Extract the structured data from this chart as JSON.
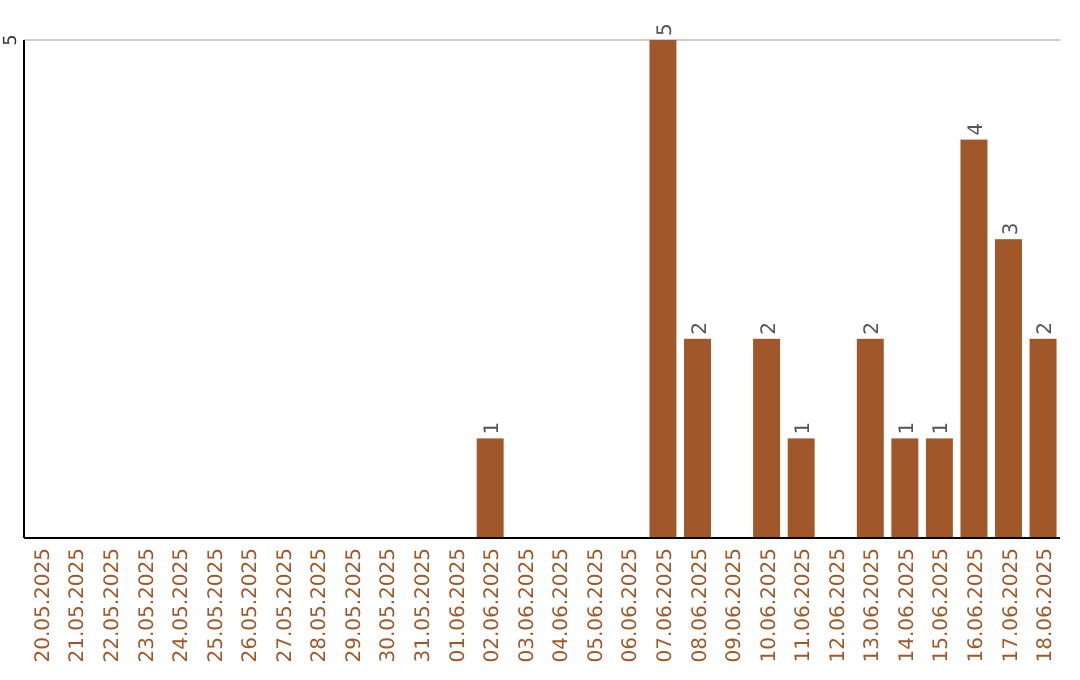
{
  "chart_data": {
    "type": "bar",
    "categories": [
      "20.05.2025",
      "21.05.2025",
      "22.05.2025",
      "23.05.2025",
      "24.05.2025",
      "25.05.2025",
      "26.05.2025",
      "27.05.2025",
      "28.05.2025",
      "29.05.2025",
      "30.05.2025",
      "31.05.2025",
      "01.06.2025",
      "02.06.2025",
      "03.06.2025",
      "04.06.2025",
      "05.06.2025",
      "06.06.2025",
      "07.06.2025",
      "08.06.2025",
      "09.06.2025",
      "10.06.2025",
      "11.06.2025",
      "12.06.2025",
      "13.06.2025",
      "14.06.2025",
      "15.06.2025",
      "16.06.2025",
      "17.06.2025",
      "18.06.2025"
    ],
    "values": [
      null,
      null,
      null,
      null,
      null,
      null,
      null,
      null,
      null,
      null,
      null,
      null,
      null,
      1,
      null,
      null,
      null,
      null,
      5,
      2,
      null,
      2,
      1,
      null,
      2,
      1,
      1,
      4,
      3,
      2
    ],
    "data_labels": true,
    "color": "#a0582a",
    "ref_lines": [
      {
        "axis": "y",
        "value": 5,
        "label": "5",
        "color": "#cccccc"
      }
    ]
  }
}
